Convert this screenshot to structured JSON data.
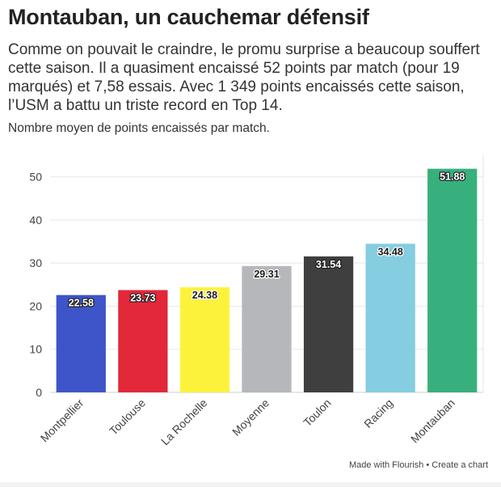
{
  "header": {
    "title": "Montauban, un cauchemar défensif",
    "subtitle": "Comme on pouvait le craindre, le promu surprise a beaucoup souffert cette saison. Il a quasiment encaissé 52 points par match (pour 19 marqués) et 7,58 essais. Avec 1 349 points encaissés cette saison, l’USM a battu un triste record en Top 14.",
    "note": "Nombre moyen de points encaissés par match."
  },
  "chart_data": {
    "type": "bar",
    "categories": [
      "Montpellier",
      "Toulouse",
      "La Rochelle",
      "Moyenne",
      "Toulon",
      "Racing",
      "Montauban"
    ],
    "values": [
      22.58,
      23.73,
      24.38,
      29.31,
      31.54,
      34.48,
      51.88
    ],
    "data_labels": [
      "22.58",
      "23.73",
      "24.38",
      "29.31",
      "31.54",
      "34.48",
      "51.88"
    ],
    "colors": [
      "#3e55c9",
      "#e3283a",
      "#fdf23b",
      "#b5b7ba",
      "#3f3f3f",
      "#85cde0",
      "#37b07e"
    ],
    "label_styles": [
      "light",
      "light",
      "dark",
      "dark",
      "light",
      "dark",
      "light"
    ],
    "ylim": [
      0,
      55
    ],
    "yticks": [
      0,
      10,
      20,
      30,
      40,
      50
    ],
    "grid": true,
    "title": "",
    "xlabel": "",
    "ylabel": ""
  },
  "footer": {
    "made_with": "Made with Flourish",
    "separator": "•",
    "create": "Create a chart"
  }
}
